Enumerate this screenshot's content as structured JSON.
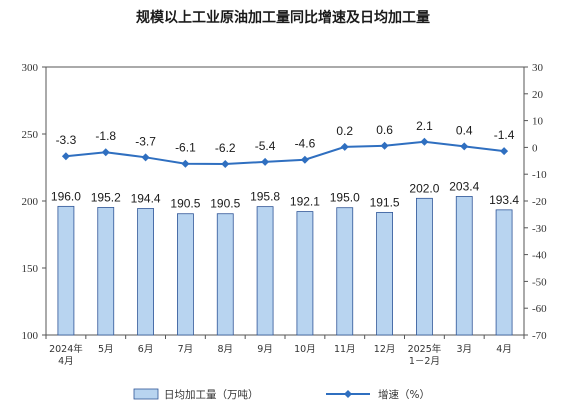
{
  "chart_data": {
    "type": "bar+line",
    "title": "规模以上工业原油加工量同比增速及日均加工量",
    "categories": [
      [
        "2024年",
        "4月"
      ],
      [
        "5月"
      ],
      [
        "6月"
      ],
      [
        "7月"
      ],
      [
        "8月"
      ],
      [
        "9月"
      ],
      [
        "10月"
      ],
      [
        "11月"
      ],
      [
        "12月"
      ],
      [
        "2025年",
        "1－2月"
      ],
      [
        "3月"
      ],
      [
        "4月"
      ]
    ],
    "series": [
      {
        "name": "日均加工量（万吨）",
        "type": "bar",
        "axis": "left",
        "values": [
          196.0,
          195.2,
          194.4,
          190.5,
          190.5,
          195.8,
          192.1,
          195.0,
          191.5,
          202.0,
          203.4,
          193.4
        ],
        "labels": [
          "196.0",
          "195.2",
          "194.4",
          "190.5",
          "190.5",
          "195.8",
          "192.1",
          "195.0",
          "191.5",
          "202.0",
          "203.4",
          "193.4"
        ],
        "color": "#b8d4f0",
        "stroke": "#2f5597"
      },
      {
        "name": "增速（%）",
        "type": "line",
        "axis": "right",
        "values": [
          -3.3,
          -1.8,
          -3.7,
          -6.1,
          -6.2,
          -5.4,
          -4.6,
          0.2,
          0.6,
          2.1,
          0.4,
          -1.4
        ],
        "labels": [
          "-3.3",
          "-1.8",
          "-3.7",
          "-6.1",
          "-6.2",
          "-5.4",
          "-4.6",
          "0.2",
          "0.6",
          "2.1",
          "0.4",
          "-1.4"
        ],
        "color": "#2f6fc0"
      }
    ],
    "y_left": {
      "ylim": [
        100,
        300
      ],
      "ticks": [
        "100",
        "150",
        "200",
        "250",
        "300"
      ]
    },
    "y_right": {
      "ylim": [
        -70,
        30
      ],
      "ticks": [
        "-70",
        "-60",
        "-50",
        "-40",
        "-30",
        "-20",
        "-10",
        "0",
        "10",
        "20",
        "30"
      ]
    },
    "legend": {
      "position": "bottom",
      "items": [
        "日均加工量（万吨）",
        "增速（%）"
      ]
    },
    "grid": false
  }
}
